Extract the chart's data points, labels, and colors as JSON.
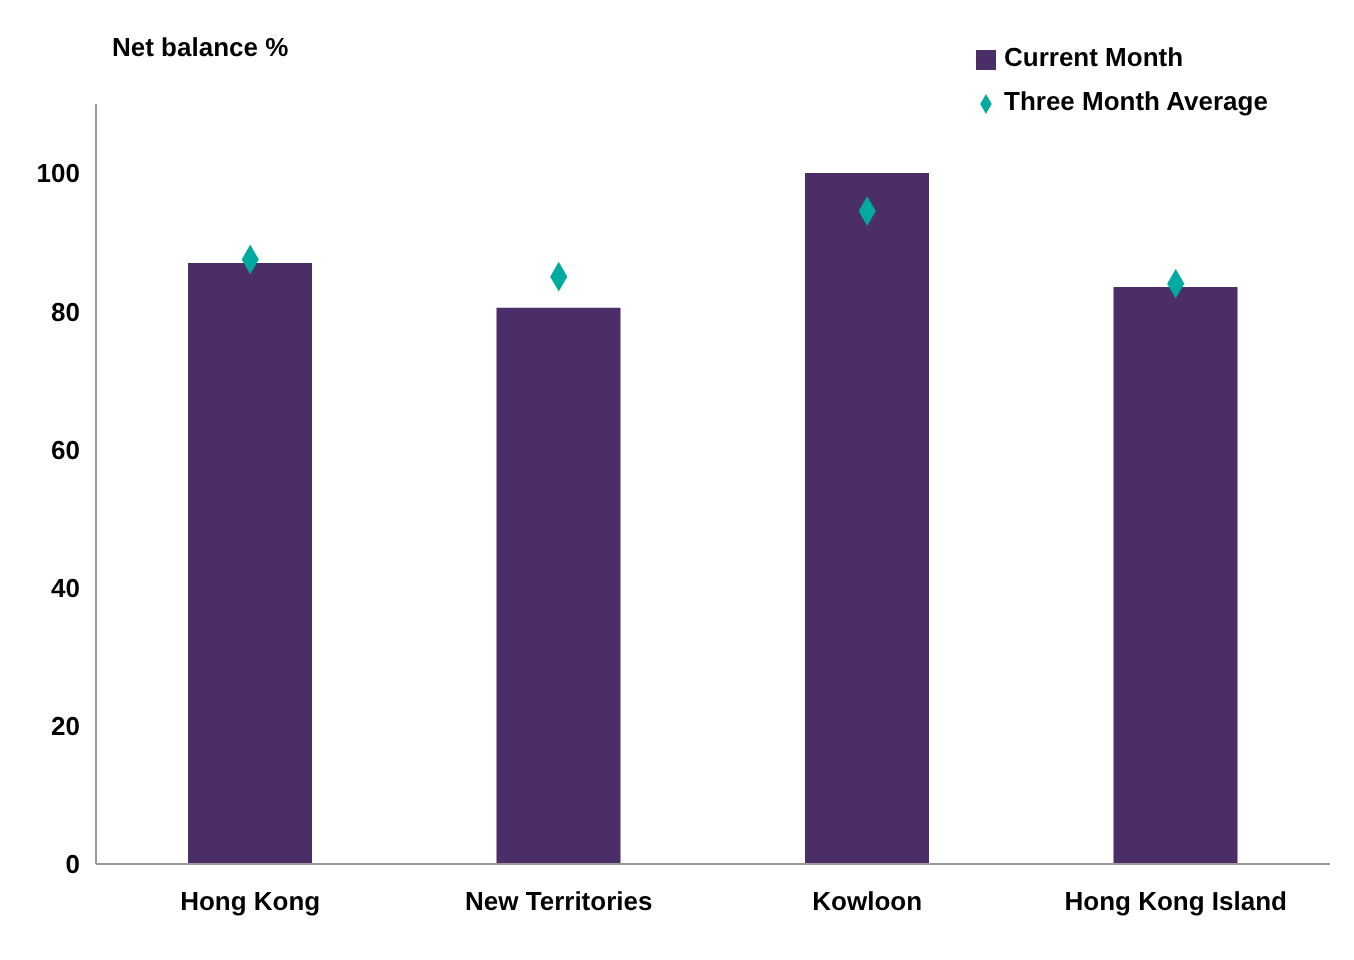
{
  "chart_data": {
    "type": "bar",
    "ylabel": "Net balance %",
    "categories": [
      "Hong Kong",
      "New Territories",
      "Kowloon",
      "Hong Kong Island"
    ],
    "series": [
      {
        "name": "Current Month",
        "color": "#4b2e67",
        "values": [
          87,
          80.5,
          100,
          83.5
        ]
      },
      {
        "name": "Three Month Average",
        "type": "scatter",
        "color": "#00aaa0",
        "values": [
          87.5,
          85,
          94.5,
          84
        ]
      }
    ],
    "ylim": [
      0,
      110
    ],
    "yticks": [
      0,
      20,
      40,
      60,
      80,
      100
    ],
    "grid": false,
    "legend": "top right",
    "marker": "diamond"
  }
}
